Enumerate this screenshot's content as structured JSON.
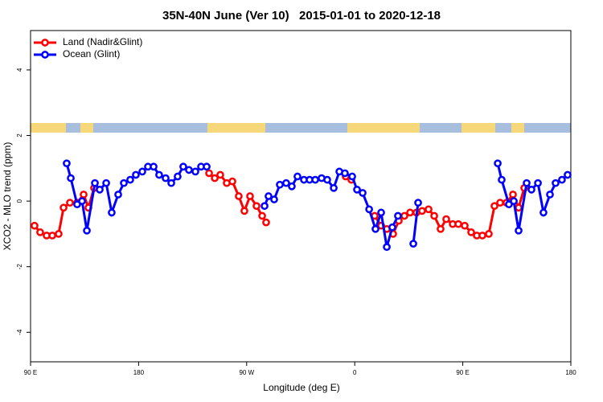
{
  "chart_data": {
    "type": "line",
    "title": "35N-40N June (Ver 10)   2015-01-01 to 2020-12-18",
    "x_label": "Longitude (deg E)",
    "y_label": "XCO2 - MLO trend (ppm)",
    "xlim": [
      90,
      540
    ],
    "ylim": [
      -4.9,
      5.2
    ],
    "xticks": [
      {
        "value": 90,
        "label": "90 E"
      },
      180,
      {
        "value": 270,
        "label": "90 W"
      },
      {
        "value": 360,
        "label": "0"
      },
      {
        "value": 450,
        "label": "90 E"
      },
      {
        "value": 540,
        "label": "180"
      }
    ],
    "yticks": [
      -4,
      -2,
      0,
      2,
      4
    ],
    "legend": "top-left",
    "series": [
      {
        "name": "Land (Nadir&Glint)",
        "color": "#ff0000",
        "x": [
          93.3,
          98.0,
          103.4,
          108.1,
          113.4,
          117.5,
          122.8,
          128.8,
          134.2,
          138.2,
          142.9,
          null,
          238.7,
          243.4,
          248.0,
          253.4,
          258.1,
          263.4,
          268.1,
          272.8,
          278.2,
          282.9,
          286.2,
          null,
          352.5,
          357.2,
          null,
          376.6,
          382.0,
          386.7,
          392.0,
          396.7,
          401.4,
          406.1,
          411.4,
          416.1,
          421.5,
          426.2,
          431.5,
          436.2,
          441.6,
          446.3,
          451.6,
          457.0,
          461.7,
          466.3,
          471.7,
          476.4,
          481.1,
          486.4,
          491.8,
          496.5,
          501.2
        ],
        "values": [
          -0.75,
          -0.95,
          -1.05,
          -1.05,
          -1.0,
          -0.2,
          -0.05,
          -0.05,
          0.2,
          -0.2,
          0.4,
          null,
          0.85,
          0.7,
          0.8,
          0.55,
          0.6,
          0.15,
          -0.3,
          0.15,
          -0.15,
          -0.45,
          -0.65,
          null,
          0.75,
          0.65,
          null,
          -0.45,
          -0.75,
          -0.85,
          -1.0,
          -0.6,
          -0.45,
          -0.35,
          -0.35,
          -0.3,
          -0.25,
          -0.45,
          -0.85,
          -0.55,
          -0.7,
          -0.7,
          -0.75,
          -0.95,
          -1.05,
          -1.05,
          -1.0,
          -0.15,
          -0.05,
          -0.05,
          0.2,
          -0.2,
          0.4
        ]
      },
      {
        "name": "Ocean (Glint)",
        "color": "#0000ff",
        "x": [
          120.1,
          123.5,
          128.8,
          132.9,
          136.9,
          143.6,
          147.6,
          153.0,
          157.6,
          163.0,
          167.7,
          173.0,
          177.7,
          183.1,
          187.8,
          192.5,
          197.1,
          202.5,
          207.2,
          212.5,
          217.2,
          221.9,
          227.3,
          232.0,
          236.7,
          null,
          284.9,
          288.2,
          292.9,
          297.6,
          302.9,
          307.6,
          312.3,
          317.7,
          322.4,
          327.1,
          332.4,
          337.1,
          342.5,
          347.2,
          351.8,
          357.9,
          361.9,
          366.6,
          372.0,
          377.3,
          382.0,
          386.7,
          391.3,
          396.0,
          null,
          408.8,
          412.8,
          null,
          479.1,
          482.4,
          488.4,
          492.5,
          496.5,
          503.2,
          507.2,
          512.6,
          517.2,
          522.6,
          527.3,
          532.6,
          537.3
        ],
        "values": [
          1.15,
          0.7,
          -0.1,
          0.0,
          -0.9,
          0.55,
          0.35,
          0.55,
          -0.35,
          0.2,
          0.55,
          0.65,
          0.8,
          0.9,
          1.05,
          1.05,
          0.8,
          0.7,
          0.55,
          0.75,
          1.05,
          0.95,
          0.9,
          1.05,
          1.05,
          null,
          -0.15,
          0.15,
          0.05,
          0.5,
          0.55,
          0.45,
          0.75,
          0.65,
          0.65,
          0.65,
          0.7,
          0.65,
          0.4,
          0.9,
          0.85,
          0.75,
          0.35,
          0.25,
          -0.25,
          -0.85,
          -0.35,
          -1.4,
          -0.8,
          -0.45,
          null,
          -1.3,
          -0.05,
          null,
          1.15,
          0.65,
          -0.1,
          0.0,
          -0.9,
          0.55,
          0.35,
          0.55,
          -0.35,
          0.2,
          0.55,
          0.65,
          0.8
        ]
      }
    ]
  }
}
